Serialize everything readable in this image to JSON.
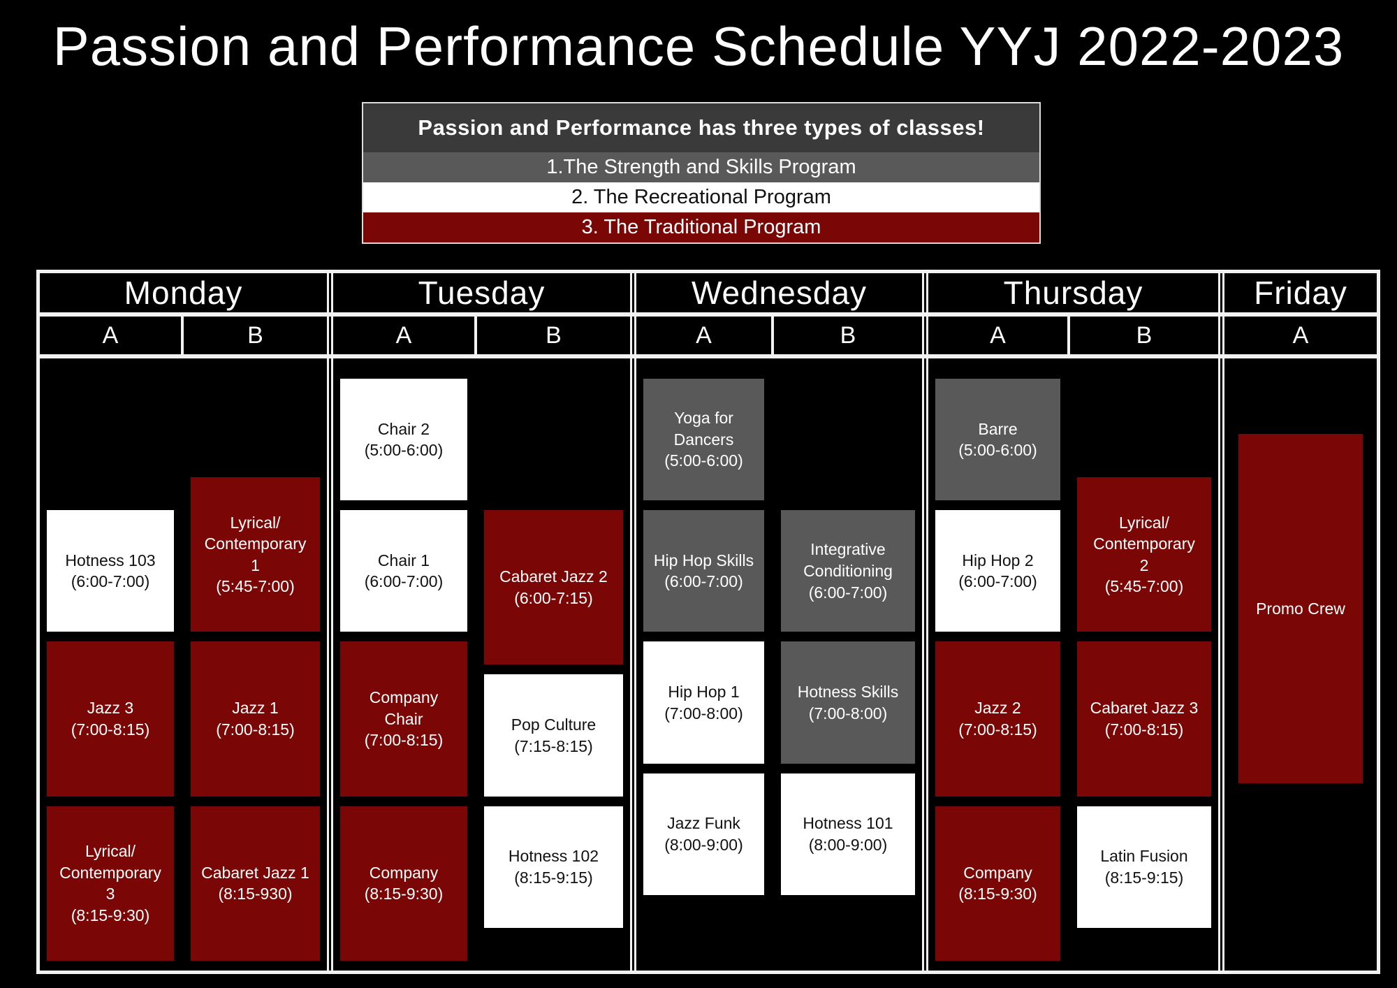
{
  "title": "Passion and Performance Schedule YYJ 2022-2023",
  "legend": {
    "header": "Passion and Performance has three types of classes!",
    "items": [
      {
        "label": "1.The Strength and Skills Program",
        "program": "strength"
      },
      {
        "label": "2. The Recreational Program",
        "program": "recreational"
      },
      {
        "label": "3. The Traditional Program",
        "program": "traditional"
      }
    ]
  },
  "colors": {
    "background": "#000000",
    "strength": "#595959",
    "recreational": "#ffffff",
    "traditional": "#7b0606",
    "legend_header_bg": "#3a3a3a",
    "table_border": "#f2f2f2",
    "dark_text": "#111111",
    "light_text": "#ffffff"
  },
  "schedule": {
    "days": [
      {
        "label": "Monday",
        "columns": [
          "A",
          "B"
        ]
      },
      {
        "label": "Tuesday",
        "columns": [
          "A",
          "B"
        ]
      },
      {
        "label": "Wednesday",
        "columns": [
          "A",
          "B"
        ]
      },
      {
        "label": "Thursday",
        "columns": [
          "A",
          "B"
        ]
      },
      {
        "label": "Friday",
        "columns": [
          "A"
        ]
      }
    ],
    "classes": [
      {
        "name": "Hotness 103",
        "time": "(6:00-7:00)",
        "program": "recreational",
        "day": "Monday",
        "column": "A",
        "startMin": 60,
        "endMin": 120
      },
      {
        "name": "Jazz 3",
        "time": "(7:00-8:15)",
        "program": "traditional",
        "day": "Monday",
        "column": "A",
        "startMin": 120,
        "endMin": 195
      },
      {
        "name": "Lyrical/\nContemporary\n3",
        "time": "(8:15-9:30)",
        "program": "traditional",
        "day": "Monday",
        "column": "A",
        "startMin": 195,
        "endMin": 270
      },
      {
        "name": "Lyrical/\nContemporary\n1",
        "time": "(5:45-7:00)",
        "program": "traditional",
        "day": "Monday",
        "column": "B",
        "startMin": 45,
        "endMin": 120
      },
      {
        "name": "Jazz 1",
        "time": "(7:00-8:15)",
        "program": "traditional",
        "day": "Monday",
        "column": "B",
        "startMin": 120,
        "endMin": 195
      },
      {
        "name": "Cabaret Jazz 1",
        "time": "(8:15-930)",
        "program": "traditional",
        "day": "Monday",
        "column": "B",
        "startMin": 195,
        "endMin": 270
      },
      {
        "name": "Chair 2",
        "time": "(5:00-6:00)",
        "program": "recreational",
        "day": "Tuesday",
        "column": "A",
        "startMin": 0,
        "endMin": 60
      },
      {
        "name": "Chair 1",
        "time": "(6:00-7:00)",
        "program": "recreational",
        "day": "Tuesday",
        "column": "A",
        "startMin": 60,
        "endMin": 120
      },
      {
        "name": "Company\nChair",
        "time": "(7:00-8:15)",
        "program": "traditional",
        "day": "Tuesday",
        "column": "A",
        "startMin": 120,
        "endMin": 195
      },
      {
        "name": "Company",
        "time": "(8:15-9:30)",
        "program": "traditional",
        "day": "Tuesday",
        "column": "A",
        "startMin": 195,
        "endMin": 270
      },
      {
        "name": "Cabaret Jazz 2",
        "time": "(6:00-7:15)",
        "program": "traditional",
        "day": "Tuesday",
        "column": "B",
        "startMin": 60,
        "endMin": 135
      },
      {
        "name": "Pop Culture",
        "time": "(7:15-8:15)",
        "program": "recreational",
        "day": "Tuesday",
        "column": "B",
        "startMin": 135,
        "endMin": 195
      },
      {
        "name": "Hotness 102",
        "time": "(8:15-9:15)",
        "program": "recreational",
        "day": "Tuesday",
        "column": "B",
        "startMin": 195,
        "endMin": 255
      },
      {
        "name": "Yoga for\nDancers",
        "time": "(5:00-6:00)",
        "program": "strength",
        "day": "Wednesday",
        "column": "A",
        "startMin": 0,
        "endMin": 60
      },
      {
        "name": "Hip Hop Skills",
        "time": "(6:00-7:00)",
        "program": "strength",
        "day": "Wednesday",
        "column": "A",
        "startMin": 60,
        "endMin": 120
      },
      {
        "name": "Hip Hop 1",
        "time": "(7:00-8:00)",
        "program": "recreational",
        "day": "Wednesday",
        "column": "A",
        "startMin": 120,
        "endMin": 180
      },
      {
        "name": "Jazz Funk",
        "time": "(8:00-9:00)",
        "program": "recreational",
        "day": "Wednesday",
        "column": "A",
        "startMin": 180,
        "endMin": 240
      },
      {
        "name": "Integrative\nConditioning",
        "time": "(6:00-7:00)",
        "program": "strength",
        "day": "Wednesday",
        "column": "B",
        "startMin": 60,
        "endMin": 120
      },
      {
        "name": "Hotness Skills",
        "time": "(7:00-8:00)",
        "program": "strength",
        "day": "Wednesday",
        "column": "B",
        "startMin": 120,
        "endMin": 180
      },
      {
        "name": "Hotness 101",
        "time": "(8:00-9:00)",
        "program": "recreational",
        "day": "Wednesday",
        "column": "B",
        "startMin": 180,
        "endMin": 240
      },
      {
        "name": "Barre",
        "time": "(5:00-6:00)",
        "program": "strength",
        "day": "Thursday",
        "column": "A",
        "startMin": 0,
        "endMin": 60
      },
      {
        "name": "Hip Hop 2",
        "time": "(6:00-7:00)",
        "program": "recreational",
        "day": "Thursday",
        "column": "A",
        "startMin": 60,
        "endMin": 120
      },
      {
        "name": "Jazz 2",
        "time": "(7:00-8:15)",
        "program": "traditional",
        "day": "Thursday",
        "column": "A",
        "startMin": 120,
        "endMin": 195
      },
      {
        "name": "Company",
        "time": "(8:15-9:30)",
        "program": "traditional",
        "day": "Thursday",
        "column": "A",
        "startMin": 195,
        "endMin": 270
      },
      {
        "name": "Lyrical/\nContemporary\n2",
        "time": "(5:45-7:00)",
        "program": "traditional",
        "day": "Thursday",
        "column": "B",
        "startMin": 45,
        "endMin": 120
      },
      {
        "name": "Cabaret Jazz 3",
        "time": "(7:00-8:15)",
        "program": "traditional",
        "day": "Thursday",
        "column": "B",
        "startMin": 120,
        "endMin": 195
      },
      {
        "name": "Latin Fusion",
        "time": "(8:15-9:15)",
        "program": "recreational",
        "day": "Thursday",
        "column": "B",
        "startMin": 195,
        "endMin": 255
      },
      {
        "name": "Promo Crew",
        "time": "",
        "program": "traditional",
        "day": "Friday",
        "column": "A",
        "startMin": null,
        "endMin": null
      }
    ]
  }
}
